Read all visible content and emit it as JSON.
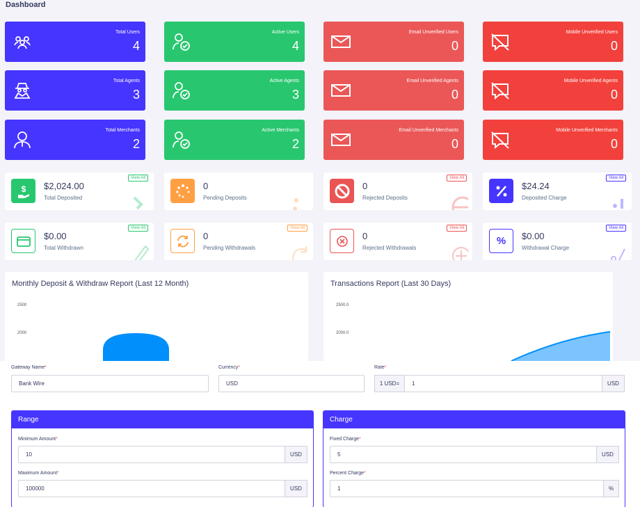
{
  "page_title": "Dashboard",
  "widgets": [
    {
      "label": "Total Users",
      "value": "4",
      "icon": "users-icon",
      "color": "#4634ff"
    },
    {
      "label": "Active Users",
      "value": "4",
      "icon": "user-check-icon",
      "color": "#28c76f"
    },
    {
      "label": "Email Unverified Users",
      "value": "0",
      "icon": "envelope-icon",
      "color": "#eb5757"
    },
    {
      "label": "Mobile Unverified Users",
      "value": "0",
      "icon": "comment-slash-icon",
      "color": "#f2413c"
    },
    {
      "label": "Total Agents",
      "value": "3",
      "icon": "user-secret-icon",
      "color": "#4634ff"
    },
    {
      "label": "Active Agents",
      "value": "3",
      "icon": "user-check-icon",
      "color": "#28c76f"
    },
    {
      "label": "Email Unverified Agents",
      "value": "0",
      "icon": "envelope-icon",
      "color": "#eb5757"
    },
    {
      "label": "Mobile Unverified Agents",
      "value": "0",
      "icon": "comment-slash-icon",
      "color": "#f2413c"
    },
    {
      "label": "Total Merchants",
      "value": "2",
      "icon": "user-tie-icon",
      "color": "#4634ff"
    },
    {
      "label": "Active Merchants",
      "value": "2",
      "icon": "user-check-icon",
      "color": "#28c76f"
    },
    {
      "label": "Email Unverified Merchants",
      "value": "0",
      "icon": "envelope-icon",
      "color": "#eb5757"
    },
    {
      "label": "Mobile Unverified Merchants",
      "value": "0",
      "icon": "comment-slash-icon",
      "color": "#f2413c"
    }
  ],
  "stats": [
    {
      "value": "$2,024.00",
      "label": "Total Deposited",
      "view_all": "View All",
      "icon": "hand-dollar-icon",
      "color": "#28c76f"
    },
    {
      "value": "0",
      "label": "Pending Deposits",
      "view_all": "",
      "icon": "spinner-icon",
      "color": "#ff9f43"
    },
    {
      "value": "0",
      "label": "Rejected Deposits",
      "view_all": "View All",
      "icon": "ban-icon",
      "color": "#ea5455"
    },
    {
      "value": "$24.24",
      "label": "Deposited Charge",
      "view_all": "View All",
      "icon": "percent-icon",
      "color": "#4634ff"
    },
    {
      "value": "$0.00",
      "label": "Total Withdrawn",
      "view_all": "View All",
      "icon": "credit-card-icon",
      "color": "#28c76f"
    },
    {
      "value": "0",
      "label": "Pending Withdrawals",
      "view_all": "View All",
      "icon": "sync-icon",
      "color": "#ff9f43"
    },
    {
      "value": "0",
      "label": "Rejected Withdrawals",
      "view_all": "View All",
      "icon": "times-circle-icon",
      "color": "#ea5455"
    },
    {
      "value": "$0.00",
      "label": "Withdrawal Charge",
      "view_all": "View All",
      "icon": "percent-icon",
      "color": "#4634ff"
    }
  ],
  "charts": {
    "deposit": {
      "title": "Monthly Deposit & Withdraw Report (Last 12 Month)",
      "ticks": [
        "2500",
        "2000"
      ]
    },
    "transactions": {
      "title": "Transactions Report (Last 30 Days)",
      "ticks": [
        "2500.0",
        "2000.0"
      ]
    }
  },
  "chart_data": [
    {
      "type": "bar",
      "title": "Monthly Deposit & Withdraw Report (Last 12 Month)",
      "yticks": [
        2500,
        2000
      ],
      "visible_peak": 2024
    },
    {
      "type": "area",
      "title": "Transactions Report (Last 30 Days)",
      "yticks": [
        2500.0,
        2000.0
      ]
    }
  ],
  "form": {
    "gateway_name_label": "Gateway Name",
    "gateway_name_value": "Bank Wire",
    "currency_label": "Currency",
    "currency_value": "USD",
    "rate_label": "Rate",
    "rate_prefix": "1 USD=",
    "rate_value": "1",
    "rate_suffix": "USD",
    "required_mark": "*"
  },
  "range": {
    "title": "Range",
    "min_label": "Minimum Amount",
    "min_value": "10",
    "min_unit": "USD",
    "max_label": "Maximum Amount",
    "max_value": "100000",
    "max_unit": "USD"
  },
  "charge": {
    "title": "Charge",
    "fixed_label": "Fixed Charge",
    "fixed_value": "5",
    "fixed_unit": "USD",
    "percent_label": "Percent Charge",
    "percent_value": "1",
    "percent_unit": "%"
  }
}
